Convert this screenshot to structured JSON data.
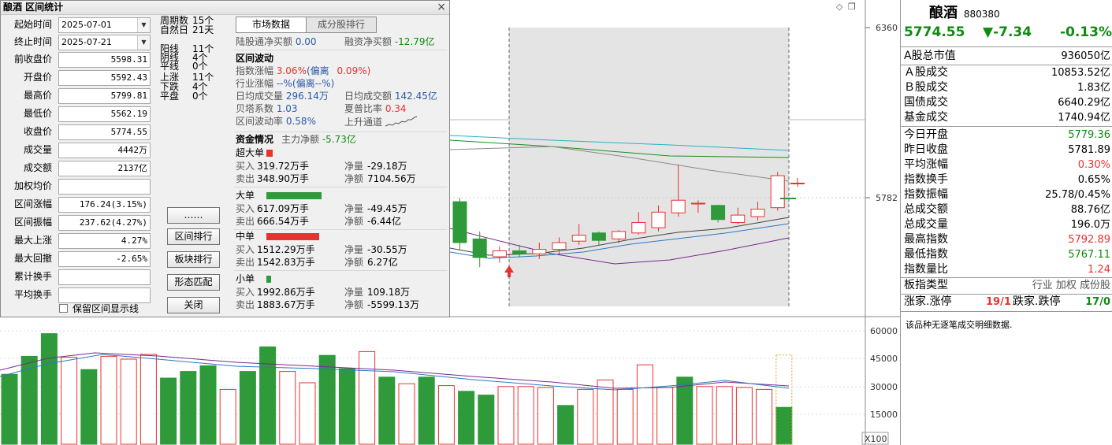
{
  "chart": {
    "price_ticks": [
      "6360",
      "5782"
    ],
    "volume_ticks": [
      "60000",
      "45000",
      "30000",
      "15000"
    ],
    "volume_unit": "X100",
    "colors": {
      "up": "#e8322f",
      "down": "#2e9a3a",
      "ma5": "#2a78c6",
      "ma10": "#7a2a8a",
      "ma20": "#1c8c1c",
      "ma30": "#26b2c8",
      "ma60": "#8a8a8a"
    }
  },
  "chart_data": {
    "type": "candlestick",
    "candles": [
      {
        "o": 5810,
        "c": 5755,
        "h": 5815,
        "l": 5745
      },
      {
        "o": 5760,
        "c": 5735,
        "h": 5770,
        "l": 5722
      },
      {
        "o": 5736,
        "c": 5744,
        "h": 5750,
        "l": 5728
      },
      {
        "o": 5744,
        "c": 5740,
        "h": 5752,
        "l": 5735
      },
      {
        "o": 5740,
        "c": 5746,
        "h": 5755,
        "l": 5733
      },
      {
        "o": 5746,
        "c": 5755,
        "h": 5762,
        "l": 5740
      },
      {
        "o": 5757,
        "c": 5765,
        "h": 5780,
        "l": 5752
      },
      {
        "o": 5768,
        "c": 5758,
        "h": 5770,
        "l": 5752
      },
      {
        "o": 5760,
        "c": 5770,
        "h": 5772,
        "l": 5754
      },
      {
        "o": 5768,
        "c": 5782,
        "h": 5796,
        "l": 5766
      },
      {
        "o": 5775,
        "c": 5796,
        "h": 5805,
        "l": 5770
      },
      {
        "o": 5795,
        "c": 5812,
        "h": 5860,
        "l": 5790
      },
      {
        "o": 5808,
        "c": 5808,
        "h": 5812,
        "l": 5795
      },
      {
        "o": 5805,
        "c": 5786,
        "h": 5806,
        "l": 5782
      },
      {
        "o": 5782,
        "c": 5792,
        "h": 5802,
        "l": 5780
      },
      {
        "o": 5790,
        "c": 5800,
        "h": 5810,
        "l": 5785
      },
      {
        "o": 5802,
        "c": 5845,
        "h": 5850,
        "l": 5798
      },
      {
        "o": 5835,
        "c": 5835,
        "h": 5842,
        "l": 5830
      }
    ],
    "volumes": [
      {
        "v": 37000,
        "up": false
      },
      {
        "v": 46500,
        "up": false
      },
      {
        "v": 58500,
        "up": false
      },
      {
        "v": 46000,
        "up": true
      },
      {
        "v": 39500,
        "up": false
      },
      {
        "v": 46500,
        "up": true
      },
      {
        "v": 45000,
        "up": true
      },
      {
        "v": 47500,
        "up": true
      },
      {
        "v": 35000,
        "up": false
      },
      {
        "v": 38500,
        "up": false
      },
      {
        "v": 41500,
        "up": false
      },
      {
        "v": 29000,
        "up": true
      },
      {
        "v": 38500,
        "up": false
      },
      {
        "v": 51500,
        "up": false
      },
      {
        "v": 38500,
        "up": true
      },
      {
        "v": 32500,
        "up": true
      },
      {
        "v": 47000,
        "up": false
      },
      {
        "v": 40000,
        "up": false
      },
      {
        "v": 49000,
        "up": true
      },
      {
        "v": 35500,
        "up": false
      },
      {
        "v": 32000,
        "up": true
      },
      {
        "v": 35500,
        "up": false
      },
      {
        "v": 31000,
        "up": true
      },
      {
        "v": 28000,
        "up": false
      },
      {
        "v": 26000,
        "up": false
      },
      {
        "v": 30500,
        "up": true
      },
      {
        "v": 30500,
        "up": true
      },
      {
        "v": 30000,
        "up": true
      },
      {
        "v": 20500,
        "up": false
      },
      {
        "v": 29000,
        "up": true
      },
      {
        "v": 34000,
        "up": true
      },
      {
        "v": 29000,
        "up": true
      },
      {
        "v": 42000,
        "up": true
      },
      {
        "v": 30000,
        "up": true
      },
      {
        "v": 35500,
        "up": false
      },
      {
        "v": 30500,
        "up": true
      },
      {
        "v": 30500,
        "up": true
      },
      {
        "v": 30000,
        "up": true
      },
      {
        "v": 29000,
        "up": true
      },
      {
        "v": 19500,
        "up": false
      }
    ]
  },
  "right": {
    "name": "酿酒",
    "code": "880380",
    "price": "5774.55",
    "change": "▼-7.34",
    "pct": "-0.13%",
    "rows1": [
      {
        "label": "A股总市值",
        "value": "936050亿",
        "cls": ""
      }
    ],
    "rows2": [
      {
        "label": "Ａ股成交",
        "value": "10853.52亿",
        "cls": ""
      },
      {
        "label": "Ｂ股成交",
        "value": "1.83亿",
        "cls": ""
      },
      {
        "label": "国债成交",
        "value": "6640.29亿",
        "cls": ""
      },
      {
        "label": "基金成交",
        "value": "1740.94亿",
        "cls": ""
      }
    ],
    "rows3": [
      {
        "label": "今日开盘",
        "value": "5779.36",
        "cls": "green"
      },
      {
        "label": "昨日收盘",
        "value": "5781.89",
        "cls": ""
      },
      {
        "label": "平均涨幅",
        "value": "0.30%",
        "cls": "red"
      },
      {
        "label": "指数换手",
        "value": "0.65%",
        "cls": ""
      },
      {
        "label": "指数振幅",
        "value": "25.78/0.45%",
        "cls": ""
      },
      {
        "label": "总成交额",
        "value": "88.76亿",
        "cls": ""
      },
      {
        "label": "总成交量",
        "value": "196.0万",
        "cls": ""
      },
      {
        "label": "最高指数",
        "value": "5792.89",
        "cls": "red"
      },
      {
        "label": "最低指数",
        "value": "5767.11",
        "cls": "green"
      },
      {
        "label": "指数量比",
        "value": "1.24",
        "cls": "red"
      }
    ],
    "board_label": "板指类型",
    "board_value": "行业 加权 成份股",
    "updown": {
      "label1": "涨家.涨停",
      "val1": "19/1",
      "label2": "跌家.跌停",
      "val2": "17/0"
    },
    "note": "该品种无逐笔成交明细数据."
  },
  "dialog": {
    "title": "酿酒 区间统计",
    "close": "×",
    "start_label": "起始时间",
    "start_value": "2025-07-01",
    "end_label": "终止时间",
    "end_value": "2025-07-21",
    "fields": [
      {
        "label": "前收盘价",
        "value": "5598.31"
      },
      {
        "label": "开盘价",
        "value": "5592.43"
      },
      {
        "label": "最高价",
        "value": "5799.81"
      },
      {
        "label": "最低价",
        "value": "5562.19"
      },
      {
        "label": "收盘价",
        "value": "5774.55"
      },
      {
        "label": "成交量",
        "value": "4442万"
      },
      {
        "label": "成交额",
        "value": "2137亿"
      },
      {
        "label": "加权均价",
        "value": ""
      },
      {
        "label": "区间涨幅",
        "value": "176.24(3.15%)"
      },
      {
        "label": "区间振幅",
        "value": "237.62(4.27%)"
      },
      {
        "label": "最大上涨",
        "value": "4.27%"
      },
      {
        "label": "最大回撤",
        "value": "-2.65%"
      },
      {
        "label": "累计换手",
        "value": ""
      },
      {
        "label": "平均换手",
        "value": ""
      }
    ],
    "stats": [
      {
        "label": "周期数",
        "value": "15个"
      },
      {
        "label": "自然日",
        "value": "21天"
      },
      {
        "label": "阳线",
        "value": "11个"
      },
      {
        "label": "阴线",
        "value": "4个"
      },
      {
        "label": "平线",
        "value": "0个"
      },
      {
        "label": "上涨",
        "value": "11个"
      },
      {
        "label": "下跌",
        "value": "4个"
      },
      {
        "label": "平盘",
        "value": "0个"
      }
    ],
    "buttons": [
      "……",
      "区间排行",
      "板块排行",
      "形态匹配",
      "关闭"
    ],
    "checkbox_label": "保留区间显示线",
    "tabs": [
      "市场数据",
      "成分股排行"
    ],
    "lugu_label": "陆股通净买额",
    "lugu_value": "0.00",
    "rongzi_label": "融资净买额",
    "rongzi_value": "-12.79亿",
    "wave_title": "区间波动",
    "zf_label": "指数涨幅",
    "zf_value": "3.06%",
    "zf_dev_label": "(偏离",
    "zf_dev_value": "0.09%)",
    "hy_label": "行业涨幅",
    "hy_value": "--%(偏离--%)",
    "avg_vol_label": "日均成交量",
    "avg_vol_value": "296.14万",
    "avg_amt_label": "日均成交额",
    "avg_amt_value": "142.45亿",
    "beta_label": "贝塔系数",
    "beta_value": "1.03",
    "sharpe_label": "夏普比率",
    "sharpe_value": "0.34",
    "vol_label": "区间波动率",
    "vol_value": "0.58%",
    "trend_label": "上升通道",
    "fund_title": "资金情况",
    "main_label": "主力净额",
    "main_value": "-5.73亿",
    "groups": [
      {
        "name": "超大单",
        "buy": "319.72万手",
        "sell": "348.90万手",
        "net_qty": "-29.18万",
        "net_amt": "7104.56万",
        "net_qty_cls": "",
        "net_amt_cls": "",
        "bar_color": "#e8322f",
        "bar_frac": 0.1
      },
      {
        "name": "大单",
        "buy": "617.09万手",
        "sell": "666.54万手",
        "net_qty": "-49.45万",
        "net_amt": "-6.44亿",
        "net_qty_cls": "",
        "net_amt_cls": "",
        "bar_color": "#2e9a3a",
        "bar_frac": 0.88
      },
      {
        "name": "中单",
        "buy": "1512.29万手",
        "sell": "1542.83万手",
        "net_qty": "-30.55万",
        "net_amt": "6.27亿",
        "net_qty_cls": "",
        "net_amt_cls": "",
        "bar_color": "#e8322f",
        "bar_frac": 0.84
      },
      {
        "name": "小单",
        "buy": "1992.86万手",
        "sell": "1883.67万手",
        "net_qty": "109.18万",
        "net_amt": "-5599.13万",
        "net_qty_cls": "",
        "net_amt_cls": "",
        "bar_color": "#2e9a3a",
        "bar_frac": 0.08
      }
    ],
    "buy_label": "买入",
    "sell_label": "卖出",
    "net_qty_label": "净量",
    "net_amt_label": "净额"
  }
}
